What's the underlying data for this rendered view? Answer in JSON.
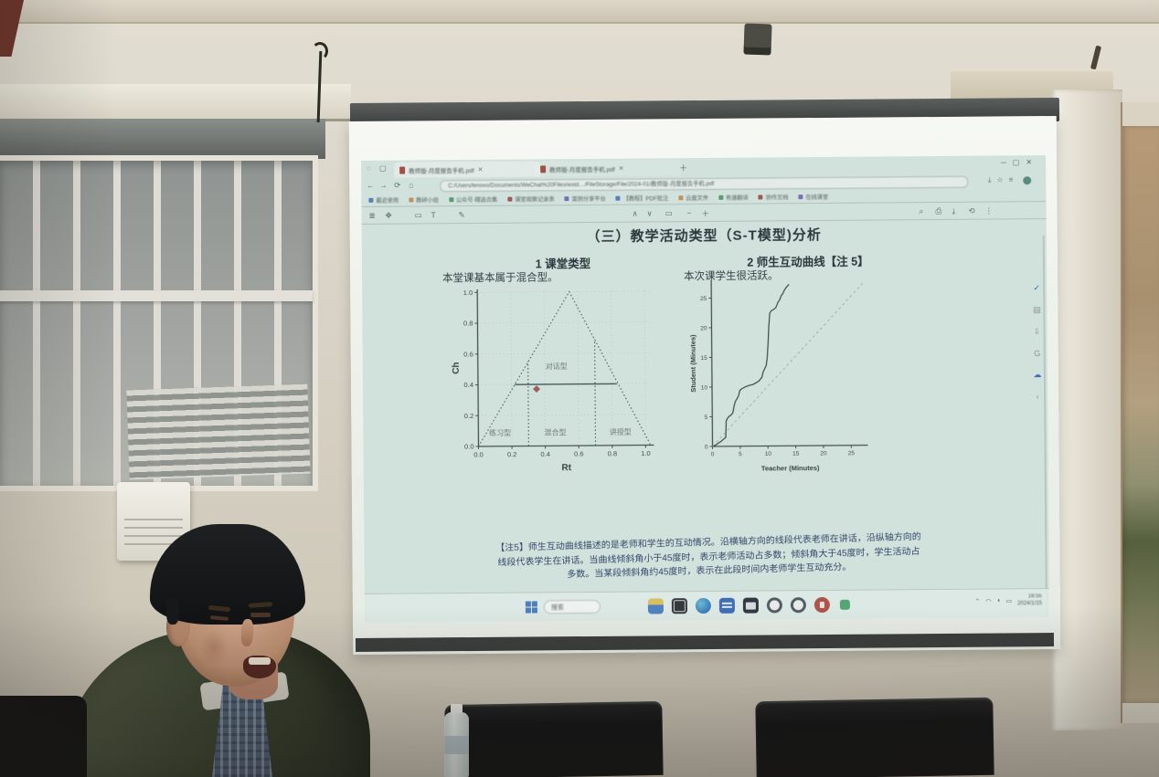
{
  "colors": {
    "slide_bg": "#d4eae2",
    "note_text": "#2a4472",
    "check_blue": "#1f66cc",
    "marker_red": "#a65c5a",
    "curve_color": "#2d4442",
    "screen_bar": "#3c403e"
  },
  "browser": {
    "tabs": [
      "教师版-月度报告手机.pdf",
      "教师版-月度报告手机.pdf"
    ],
    "address": "C:/Users/lenovo/Documents/WeChat%20Files/wxid…/FileStorage/File/2024-01/教师版-月度报告手机.pdf",
    "bookmarks": [
      "最近使用",
      "教研小组",
      "公众号·精选合集",
      "课堂观察记录表",
      "案例分享平台",
      "【教程】PDF批注",
      "云盘文件",
      "有道翻译",
      "协作文档",
      "在线课堂"
    ]
  },
  "glyphs": {
    "tab_dot": "◌",
    "tab_box": "▢",
    "close_tab": "✕",
    "plus": "＋",
    "min": "─",
    "max": "▢",
    "close": "✕",
    "back": "←",
    "forward": "→",
    "refresh": "⟳",
    "home": "⌂",
    "download": "⤓",
    "star": "☆",
    "menu": "≡",
    "hand": "✥",
    "select": "▭",
    "text_tool": "T",
    "pen": "✎",
    "sidebar": "≣",
    "page_up": "∧",
    "page_down": "∨",
    "zoom_out": "−",
    "zoom_in": "＋",
    "find": "⌕",
    "print": "⎙",
    "rotate": "⟲",
    "more": "⋮",
    "check": "✓",
    "doc": "▤",
    "sort": "⇩",
    "g": "G",
    "cloud": "☁",
    "chev": "‹",
    "tray_up": "⌃",
    "tray_net": "◠",
    "tray_vol": "◖",
    "tray_bat": "▭"
  },
  "document": {
    "title": "（三）教学活动类型（S-T模型)分析",
    "sections": [
      {
        "heading": "1 课堂类型",
        "body": "本堂课基本属于混合型。"
      },
      {
        "heading": "2 师生互动曲线【注 5】",
        "body": "本次课学生很活跃。"
      }
    ],
    "note_lines": [
      "【注5】师生互动曲线描述的是老师和学生的互动情况。沿横轴方向的线段代表老师在讲话，沿纵轴方向的",
      "线段代表学生在讲话。当曲线倾斜角小于45度时，表示老师活动占多数；倾斜角大于45度时，学生活动占",
      "多数。当某段倾斜角约45度时，表示在此段时间内老师学生互动充分。"
    ]
  },
  "taskbar": {
    "search": "搜索",
    "time": "16:55",
    "date": "2024/1/15"
  },
  "chart_data": [
    {
      "type": "scatter",
      "title": "",
      "xlabel": "Rt",
      "ylabel": "Ch",
      "xlim": [
        0,
        1.05
      ],
      "ylim": [
        0,
        1.02
      ],
      "xticks": [
        0,
        0.2,
        0.4,
        0.6,
        0.8,
        1.0
      ],
      "yticks": [
        0,
        0.2,
        0.4,
        0.6,
        0.8,
        1.0
      ],
      "grid": true,
      "tick_decimals": 1,
      "triangle": [
        [
          0,
          0
        ],
        [
          0.55,
          1.0
        ],
        [
          1.03,
          0
        ]
      ],
      "vlines": [
        {
          "x": 0.3,
          "y1": 0.55
        },
        {
          "x": 0.7,
          "y1": 0.69
        }
      ],
      "hline": {
        "y": 0.4,
        "x0": 0.22,
        "x1": 0.83
      },
      "point": {
        "x": 0.35,
        "y": 0.37,
        "marker": "diamond",
        "color": "#a65c5a"
      },
      "regions": [
        {
          "label": "对话型",
          "x": 0.47,
          "y": 0.5
        },
        {
          "label": "练习型",
          "x": 0.13,
          "y": 0.07
        },
        {
          "label": "混合型",
          "x": 0.46,
          "y": 0.07
        },
        {
          "label": "讲授型",
          "x": 0.85,
          "y": 0.07
        }
      ]
    },
    {
      "type": "line",
      "title": "",
      "xlabel": "Teacher (Minutes)",
      "ylabel": "Student (Minutes)",
      "xlim": [
        0,
        28
      ],
      "ylim": [
        0,
        28
      ],
      "xticks": [
        0,
        5,
        10,
        15,
        20,
        25
      ],
      "yticks": [
        0,
        5,
        10,
        15,
        20,
        25
      ],
      "grid": false,
      "tick_decimals": 0,
      "series": [
        {
          "name": "st-curve",
          "dash": "",
          "points": [
            [
              0,
              0
            ],
            [
              0.5,
              0.2
            ],
            [
              1,
              0.5
            ],
            [
              1.5,
              0.8
            ],
            [
              2,
              1.2
            ],
            [
              2.4,
              1.5
            ],
            [
              2.5,
              4.3
            ],
            [
              2.8,
              4.8
            ],
            [
              3,
              5
            ],
            [
              3.4,
              5.3
            ],
            [
              3.7,
              5.6
            ],
            [
              4,
              7
            ],
            [
              4.2,
              7.6
            ],
            [
              4.5,
              8
            ],
            [
              4.8,
              8.6
            ],
            [
              5,
              9.4
            ],
            [
              5.4,
              9.7
            ],
            [
              6,
              10
            ],
            [
              6.6,
              10.2
            ],
            [
              7.4,
              10.4
            ],
            [
              8,
              10.7
            ],
            [
              8.5,
              11
            ],
            [
              9,
              11.6
            ],
            [
              9.2,
              12.4
            ],
            [
              9.5,
              13
            ],
            [
              9.8,
              13.6
            ],
            [
              10,
              15
            ],
            [
              10.1,
              16.5
            ],
            [
              10.2,
              18
            ],
            [
              10.3,
              20
            ],
            [
              10.5,
              22.4
            ],
            [
              10.8,
              22.8
            ],
            [
              11.2,
              23
            ],
            [
              11.6,
              23.3
            ],
            [
              12,
              24.2
            ],
            [
              12.3,
              24.6
            ],
            [
              12.6,
              25.3
            ],
            [
              12.9,
              25.7
            ],
            [
              13.2,
              26.3
            ],
            [
              13.6,
              26.8
            ],
            [
              14,
              27.2
            ]
          ]
        },
        {
          "name": "diagonal-reference",
          "dash": "3,3",
          "points": [
            [
              0,
              0
            ],
            [
              27.5,
              27.5
            ]
          ]
        }
      ]
    }
  ]
}
